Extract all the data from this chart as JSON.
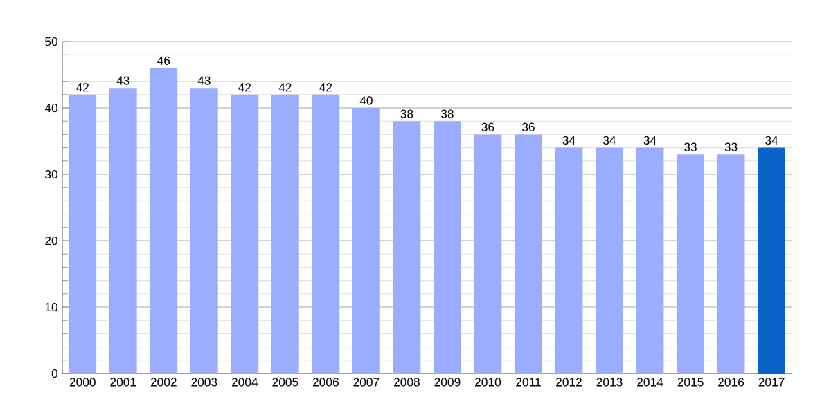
{
  "chart_data": {
    "type": "bar",
    "categories": [
      "2000",
      "2001",
      "2002",
      "2003",
      "2004",
      "2005",
      "2006",
      "2007",
      "2008",
      "2009",
      "2010",
      "2011",
      "2012",
      "2013",
      "2014",
      "2015",
      "2016",
      "2017"
    ],
    "values": [
      42,
      43,
      46,
      43,
      42,
      42,
      42,
      40,
      38,
      38,
      36,
      36,
      34,
      34,
      34,
      33,
      33,
      34
    ],
    "colors": [
      "#9badff",
      "#9badff",
      "#9badff",
      "#9badff",
      "#9badff",
      "#9badff",
      "#9badff",
      "#9badff",
      "#9badff",
      "#9badff",
      "#9badff",
      "#9badff",
      "#9badff",
      "#9badff",
      "#9badff",
      "#9badff",
      "#9badff",
      "#0a64c8"
    ],
    "ylim": [
      0,
      50
    ],
    "yticks": [
      0,
      10,
      20,
      30,
      40,
      50
    ],
    "grid": "y",
    "data_labels": true
  }
}
